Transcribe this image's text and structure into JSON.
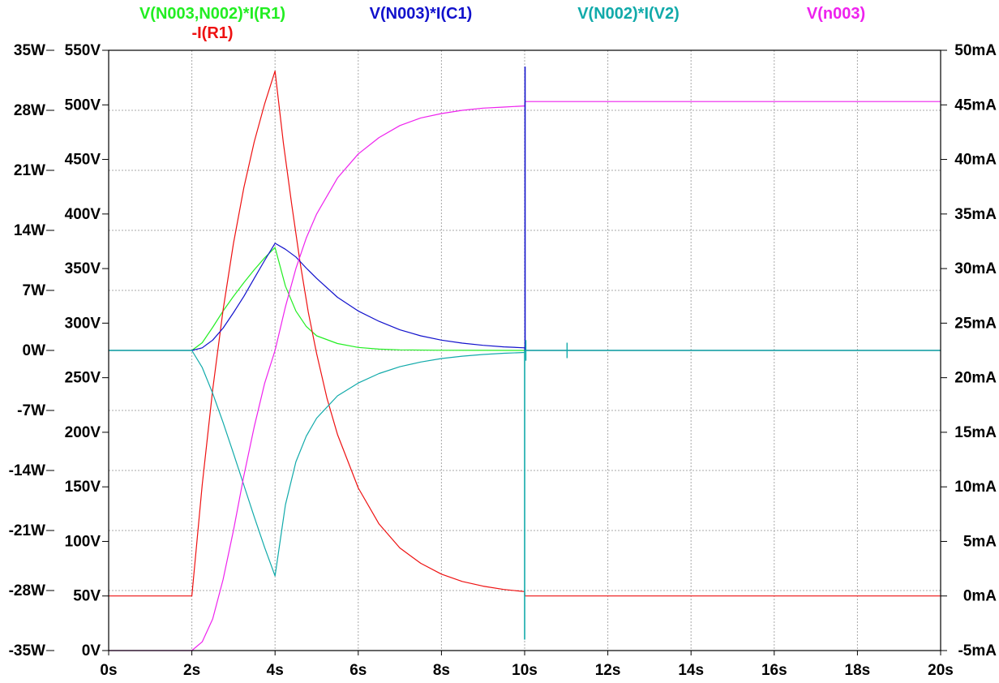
{
  "chart_data": {
    "type": "line",
    "x_axis": {
      "range": [
        0,
        20
      ],
      "ticks": [
        0,
        2,
        4,
        6,
        8,
        10,
        12,
        14,
        16,
        18,
        20
      ],
      "tick_labels": [
        "0s",
        "2s",
        "4s",
        "6s",
        "8s",
        "10s",
        "12s",
        "14s",
        "16s",
        "18s",
        "20s"
      ]
    },
    "y_axis_power": {
      "range": [
        -35,
        35
      ],
      "ticks": [
        -35,
        -28,
        -21,
        -14,
        -7,
        0,
        7,
        14,
        21,
        28,
        35
      ],
      "tick_labels": [
        "-35W",
        "-28W",
        "-21W",
        "-14W",
        "-7W",
        "0W",
        "7W",
        "14W",
        "21W",
        "28W",
        "35W"
      ]
    },
    "y_axis_voltage": {
      "range": [
        0,
        550
      ],
      "ticks": [
        0,
        50,
        100,
        150,
        200,
        250,
        300,
        350,
        400,
        450,
        500,
        550
      ],
      "tick_labels": [
        "0V",
        "50V",
        "100V",
        "150V",
        "200V",
        "250V",
        "300V",
        "350V",
        "400V",
        "450V",
        "500V",
        "550V"
      ]
    },
    "y_axis_current": {
      "range": [
        -5,
        50
      ],
      "ticks": [
        -5,
        0,
        5,
        10,
        15,
        20,
        25,
        30,
        35,
        40,
        45,
        50
      ],
      "tick_labels": [
        "-5mA",
        "0mA",
        "5mA",
        "10mA",
        "15mA",
        "20mA",
        "25mA",
        "30mA",
        "35mA",
        "40mA",
        "45mA",
        "50mA"
      ]
    },
    "grid": true,
    "legend_placement": "top",
    "series": [
      {
        "name": "V(N003,N002)*I(R1)",
        "axis": "power",
        "color": "#22ee22",
        "x": [
          0,
          2,
          2.25,
          2.5,
          2.75,
          3,
          3.25,
          3.5,
          3.75,
          4,
          4.25,
          4.5,
          4.75,
          5,
          5.5,
          6,
          6.5,
          7,
          8,
          9,
          10,
          10.01,
          11,
          20
        ],
        "y": [
          0,
          0,
          0.9,
          2.7,
          4.6,
          6.3,
          7.9,
          9.4,
          10.8,
          12,
          7.5,
          4.6,
          2.8,
          1.7,
          0.8,
          0.35,
          0.15,
          0.07,
          0.02,
          0.01,
          0,
          0,
          0,
          0
        ]
      },
      {
        "name": "-I(R1)",
        "axis": "current",
        "color": "#ee1111",
        "x": [
          0,
          2,
          2.25,
          2.5,
          2.75,
          3,
          3.25,
          3.5,
          3.75,
          4,
          4.2,
          4.4,
          4.6,
          4.8,
          5,
          5.25,
          5.5,
          6,
          6.5,
          7,
          7.5,
          8,
          8.5,
          9,
          9.5,
          10,
          10.01,
          20
        ],
        "y": [
          0,
          0,
          10.2,
          18.9,
          26.2,
          32.3,
          37.4,
          41.6,
          45.1,
          48.1,
          41.5,
          35.9,
          30.6,
          26.0,
          22.2,
          18.1,
          14.8,
          9.9,
          6.6,
          4.4,
          3.0,
          2.0,
          1.33,
          0.9,
          0.6,
          0.4,
          0,
          0
        ]
      },
      {
        "name": "V(N003)*I(C1)",
        "axis": "power",
        "color": "#1111cc",
        "x": [
          0,
          2,
          2.25,
          2.5,
          2.75,
          3,
          3.25,
          3.5,
          3.75,
          4,
          4.25,
          4.5,
          4.75,
          5,
          5.5,
          6,
          6.5,
          7,
          7.5,
          8,
          8.5,
          9,
          9.5,
          10,
          10.01,
          20
        ],
        "y": [
          0,
          0,
          0.3,
          1.2,
          2.6,
          4.4,
          6.3,
          8.4,
          10.5,
          12.5,
          11.8,
          10.9,
          9.6,
          8.4,
          6.2,
          4.6,
          3.4,
          2.4,
          1.7,
          1.2,
          0.85,
          0.6,
          0.42,
          0.3,
          0,
          0
        ]
      },
      {
        "name": "V(N002)*I(V2)",
        "axis": "power",
        "color": "#11aaaa",
        "x": [
          0,
          2,
          2.25,
          2.5,
          2.75,
          3,
          3.25,
          3.5,
          3.75,
          4,
          4.25,
          4.5,
          4.75,
          5,
          5.5,
          6,
          6.5,
          7,
          7.5,
          8,
          8.5,
          9,
          9.5,
          10,
          10.01,
          20
        ],
        "y": [
          0,
          0,
          -2.0,
          -5.0,
          -8.4,
          -12.0,
          -15.7,
          -19.4,
          -23.0,
          -26.3,
          -18.0,
          -13.0,
          -10.0,
          -7.9,
          -5.3,
          -3.8,
          -2.7,
          -1.9,
          -1.35,
          -0.95,
          -0.67,
          -0.47,
          -0.33,
          -0.24,
          0,
          0
        ]
      },
      {
        "name": "V(n003)",
        "axis": "voltage",
        "color": "#ee22ee",
        "x": [
          0,
          2,
          2.25,
          2.5,
          2.75,
          3,
          3.25,
          3.5,
          3.75,
          4,
          4.25,
          4.5,
          4.75,
          5,
          5.5,
          6,
          6.5,
          7,
          7.5,
          8,
          8.5,
          9,
          9.5,
          10,
          10.01,
          20
        ],
        "y": [
          0,
          0,
          8,
          29,
          65,
          110,
          160,
          205,
          245,
          275,
          315,
          350,
          378,
          400,
          433,
          455,
          470,
          481,
          488,
          492,
          495,
          497,
          498,
          499,
          503,
          503
        ]
      }
    ]
  },
  "legend": {
    "items": [
      {
        "label": "V(N003,N002)*I(R1)",
        "color": "#22ee22"
      },
      {
        "label": "-I(R1)",
        "color": "#ee1111"
      },
      {
        "label": "V(N003)*I(C1)",
        "color": "#1111cc"
      },
      {
        "label": "V(N002)*I(V2)",
        "color": "#11aaaa"
      },
      {
        "label": "V(n003)",
        "color": "#ee22ee"
      }
    ]
  },
  "colors": {
    "grid": "#a8a8a8",
    "frame": "#000000",
    "background": "#ffffff"
  }
}
